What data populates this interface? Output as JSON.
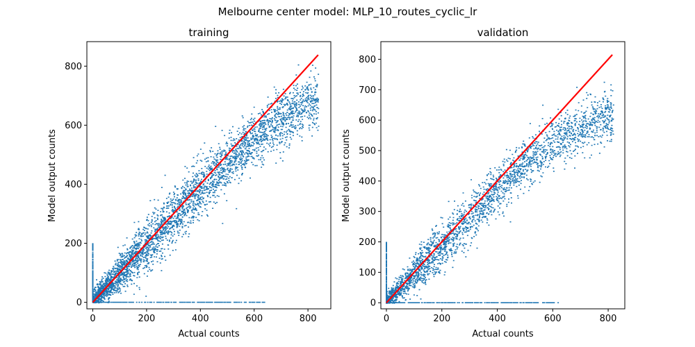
{
  "figure": {
    "suptitle": "Melbourne center model:  MLP_10_routes_cyclic_lr"
  },
  "colors": {
    "scatter": "#1f77b4",
    "identity_line": "#ff0000",
    "axes": "#000000",
    "background": "#ffffff"
  },
  "chart_data": [
    {
      "type": "scatter",
      "title": "training",
      "xlabel": "Actual counts",
      "ylabel": "Model output counts",
      "xlim": [
        -22,
        885
      ],
      "ylim": [
        -22,
        883
      ],
      "xticks": [
        0,
        200,
        400,
        600,
        800
      ],
      "yticks": [
        0,
        200,
        400,
        600,
        800
      ],
      "grid": false,
      "legend": "none",
      "series": [
        {
          "kind": "scatter",
          "trend_x": [
            0,
            100,
            200,
            300,
            400,
            500,
            600,
            700,
            800
          ],
          "trend_y": [
            3,
            100,
            197,
            293,
            385,
            473,
            555,
            622,
            680
          ],
          "spread": 45,
          "x_max_observed": 840,
          "zero_output_x_range": [
            0,
            640
          ],
          "zero_input_y_range": [
            0,
            200
          ]
        },
        {
          "kind": "line",
          "x": [
            0,
            838
          ],
          "y": [
            0,
            838
          ]
        }
      ]
    },
    {
      "type": "scatter",
      "title": "validation",
      "xlabel": "Actual counts",
      "ylabel": "Model output counts",
      "xlim": [
        -20,
        860
      ],
      "ylim": [
        -20,
        858
      ],
      "xticks": [
        0,
        200,
        400,
        600,
        800
      ],
      "yticks": [
        0,
        100,
        200,
        300,
        400,
        500,
        600,
        700,
        800
      ],
      "grid": false,
      "legend": "none",
      "series": [
        {
          "kind": "scatter",
          "trend_x": [
            0,
            100,
            200,
            300,
            400,
            500,
            600,
            700,
            800
          ],
          "trend_y": [
            3,
            95,
            188,
            280,
            370,
            455,
            525,
            575,
            615
          ],
          "spread": 40,
          "x_max_observed": 820,
          "zero_output_x_range": [
            0,
            620
          ],
          "zero_input_y_range": [
            0,
            200
          ]
        },
        {
          "kind": "line",
          "x": [
            0,
            815
          ],
          "y": [
            0,
            815
          ]
        }
      ]
    }
  ]
}
